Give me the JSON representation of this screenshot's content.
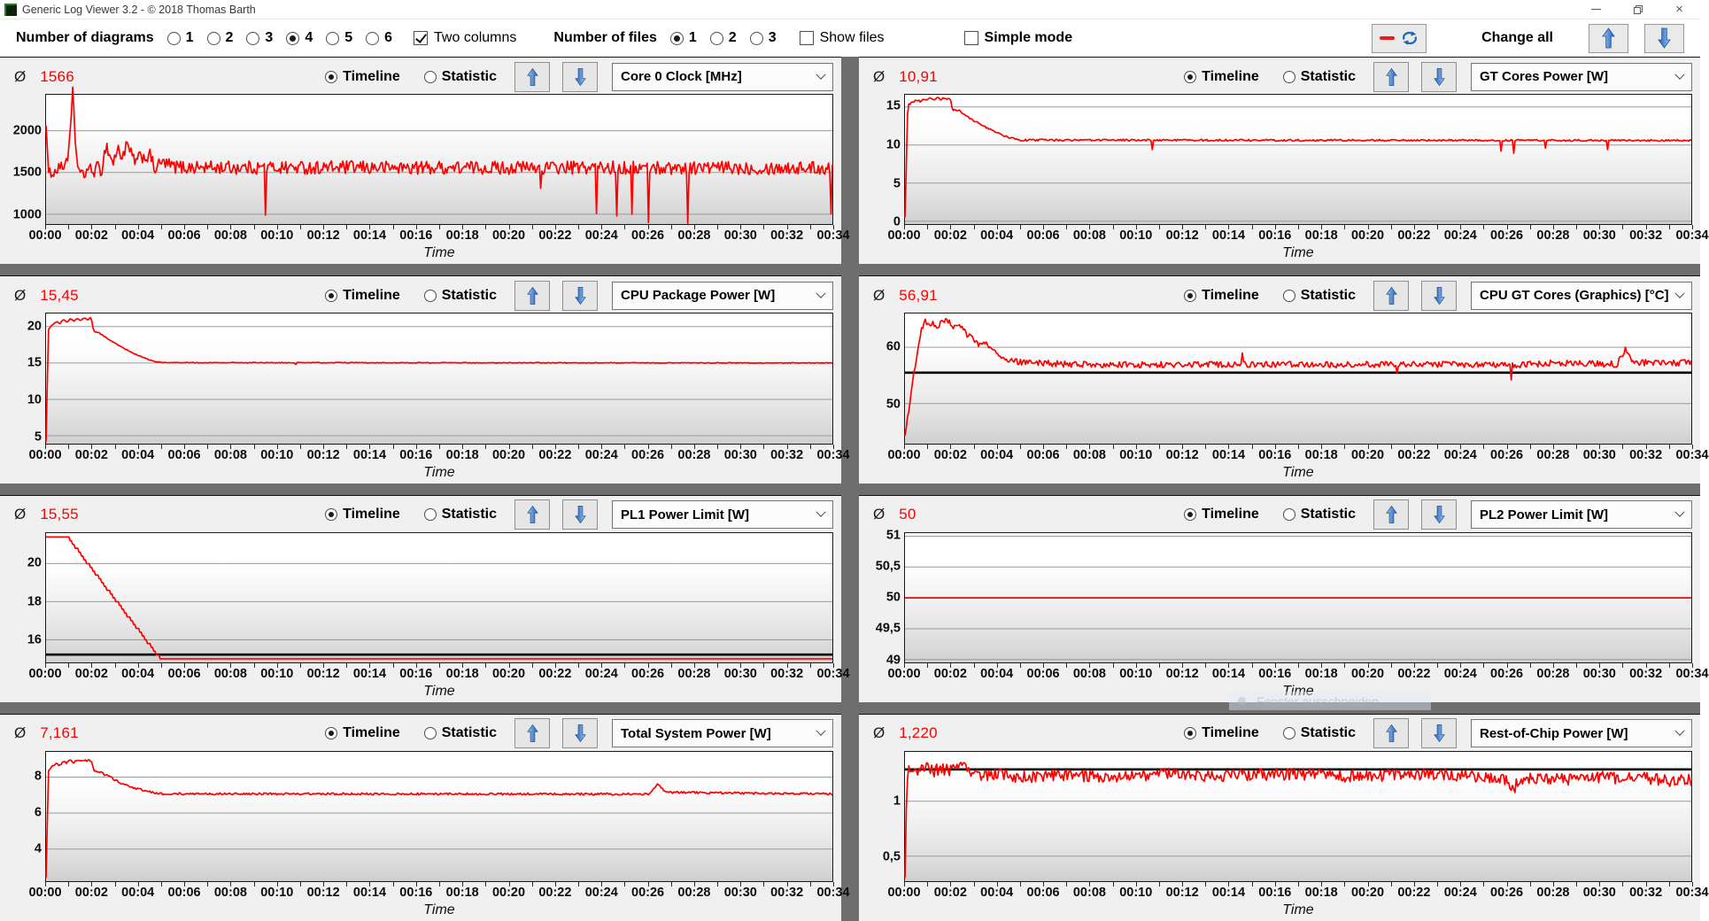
{
  "window": {
    "title": "Generic Log Viewer 3.2 - © 2018 Thomas Barth",
    "close_glyph": "×"
  },
  "toolbar": {
    "diagrams_label": "Number of diagrams",
    "diagram_options": [
      "1",
      "2",
      "3",
      "4",
      "5",
      "6"
    ],
    "diagrams_selected": "4",
    "two_columns_label": "Two columns",
    "two_columns_checked": true,
    "files_label": "Number of files",
    "file_options": [
      "1",
      "2",
      "3"
    ],
    "files_selected": "1",
    "show_files_label": "Show files",
    "show_files_checked": false,
    "simple_mode_label": "Simple mode",
    "simple_mode_checked": false,
    "change_all_label": "Change all"
  },
  "controls": {
    "average_symbol": "Ø",
    "timeline_label": "Timeline",
    "statistic_label": "Statistic"
  },
  "artifact": {
    "text": "Fenster ausschneiden"
  },
  "colors": {
    "series_red": "#fe0000",
    "average_line_black": "#000000",
    "arrow_blue": "#2f6fc0",
    "grid_gray": "#9a9a9a"
  },
  "chart_data": [
    {
      "type": "line",
      "metric": "Core 0 Clock [MHz]",
      "avg_display": "1566",
      "average": 1566,
      "xlabel": "Time",
      "x_ticks": [
        "00:00",
        "00:02",
        "00:04",
        "00:06",
        "00:08",
        "00:10",
        "00:12",
        "00:14",
        "00:16",
        "00:18",
        "00:20",
        "00:22",
        "00:24",
        "00:26",
        "00:28",
        "00:30",
        "00:32",
        "00:34"
      ],
      "x_range_min": [
        0,
        34
      ],
      "ylim": [
        880,
        2430
      ],
      "y_ticks": [
        1000,
        1500,
        2000
      ],
      "y_tick_labels": [
        "1000",
        "1500",
        "2000"
      ],
      "line_color": "#fe0000",
      "noise": 80,
      "avg_line": null,
      "anchors": [
        [
          0,
          2130
        ],
        [
          0.1,
          1430
        ],
        [
          0.25,
          1540
        ],
        [
          0.4,
          1480
        ],
        [
          0.55,
          1600
        ],
        [
          0.7,
          1520
        ],
        [
          0.85,
          1650
        ],
        [
          1.0,
          1750
        ],
        [
          1.15,
          2450
        ],
        [
          1.3,
          1720
        ],
        [
          1.45,
          1500
        ],
        [
          1.6,
          1440
        ],
        [
          1.8,
          1560
        ],
        [
          2.0,
          1500
        ],
        [
          2.2,
          1560
        ],
        [
          2.4,
          1520
        ],
        [
          2.6,
          1840
        ],
        [
          2.75,
          1700
        ],
        [
          2.9,
          1620
        ],
        [
          3.1,
          1780
        ],
        [
          3.3,
          1690
        ],
        [
          3.5,
          1830
        ],
        [
          3.7,
          1700
        ],
        [
          3.9,
          1620
        ],
        [
          4.1,
          1700
        ],
        [
          4.3,
          1680
        ],
        [
          4.5,
          1700
        ],
        [
          4.7,
          1540
        ],
        [
          5.0,
          1620
        ],
        [
          5.5,
          1570
        ],
        [
          6,
          1560
        ],
        [
          34,
          1555
        ]
      ],
      "spikes": [
        [
          9.5,
          990
        ],
        [
          21.4,
          1310
        ],
        [
          23.8,
          1010
        ],
        [
          24.7,
          980
        ],
        [
          25.35,
          1000
        ],
        [
          26.05,
          900
        ],
        [
          27.75,
          890
        ],
        [
          33.95,
          1005
        ]
      ]
    },
    {
      "type": "line",
      "metric": "GT Cores Power [W]",
      "avg_display": "10,91",
      "average": 10.91,
      "xlabel": "Time",
      "x_ticks": [
        "00:00",
        "00:02",
        "00:04",
        "00:06",
        "00:08",
        "00:10",
        "00:12",
        "00:14",
        "00:16",
        "00:18",
        "00:20",
        "00:22",
        "00:24",
        "00:26",
        "00:28",
        "00:30",
        "00:32",
        "00:34"
      ],
      "x_range_min": [
        0,
        34
      ],
      "ylim": [
        -0.4,
        16.6
      ],
      "y_ticks": [
        0,
        5,
        10,
        15
      ],
      "y_tick_labels": [
        "0",
        "5",
        "10",
        "15"
      ],
      "line_color": "#fe0000",
      "noise": 0.12,
      "avg_line": null,
      "anchors": [
        [
          0,
          0.4
        ],
        [
          0.12,
          15.2
        ],
        [
          0.3,
          15.6
        ],
        [
          0.5,
          15.9
        ],
        [
          0.65,
          15.7
        ],
        [
          0.8,
          16.1
        ],
        [
          0.95,
          15.85
        ],
        [
          1.1,
          16.15
        ],
        [
          1.25,
          15.9
        ],
        [
          1.4,
          16.2
        ],
        [
          1.55,
          15.95
        ],
        [
          1.7,
          16.2
        ],
        [
          1.85,
          16.05
        ],
        [
          1.95,
          16.15
        ],
        [
          2.05,
          14.7
        ],
        [
          2.2,
          14.45
        ],
        [
          2.35,
          14.55
        ],
        [
          2.5,
          14.1
        ],
        [
          2.8,
          13.5
        ],
        [
          3.1,
          13.0
        ],
        [
          3.4,
          12.5
        ],
        [
          3.7,
          12.0
        ],
        [
          4.0,
          11.6
        ],
        [
          4.3,
          11.2
        ],
        [
          4.6,
          10.9
        ],
        [
          5.0,
          10.65
        ],
        [
          34,
          10.6
        ]
      ],
      "spikes": [
        [
          10.7,
          9.4
        ],
        [
          25.8,
          9.2
        ],
        [
          26.3,
          8.9
        ],
        [
          27.7,
          9.6
        ],
        [
          30.4,
          9.4
        ]
      ]
    },
    {
      "type": "line",
      "metric": "CPU Package Power [W]",
      "avg_display": "15,45",
      "average": 15.45,
      "xlabel": "Time",
      "x_ticks": [
        "00:00",
        "00:02",
        "00:04",
        "00:06",
        "00:08",
        "00:10",
        "00:12",
        "00:14",
        "00:16",
        "00:18",
        "00:20",
        "00:22",
        "00:24",
        "00:26",
        "00:28",
        "00:30",
        "00:32",
        "00:34"
      ],
      "x_range_min": [
        0,
        34
      ],
      "ylim": [
        4,
        21.8
      ],
      "y_ticks": [
        5,
        10,
        15,
        20
      ],
      "y_tick_labels": [
        "5",
        "10",
        "15",
        "20"
      ],
      "line_color": "#fe0000",
      "noise": 0.05,
      "avg_line": null,
      "anchors": [
        [
          0,
          4.2
        ],
        [
          0.1,
          19.6
        ],
        [
          0.25,
          20.2
        ],
        [
          0.45,
          20.7
        ],
        [
          0.6,
          20.4
        ],
        [
          0.75,
          21.0
        ],
        [
          0.9,
          20.6
        ],
        [
          1.05,
          21.1
        ],
        [
          1.2,
          20.75
        ],
        [
          1.35,
          21.15
        ],
        [
          1.5,
          20.85
        ],
        [
          1.65,
          21.2
        ],
        [
          1.8,
          20.9
        ],
        [
          1.95,
          21.3
        ],
        [
          2.05,
          19.4
        ],
        [
          2.3,
          19.1
        ],
        [
          2.6,
          18.5
        ],
        [
          2.9,
          17.9
        ],
        [
          3.2,
          17.3
        ],
        [
          3.5,
          16.8
        ],
        [
          3.8,
          16.3
        ],
        [
          4.1,
          15.9
        ],
        [
          4.4,
          15.5
        ],
        [
          4.7,
          15.2
        ],
        [
          5.0,
          15.05
        ],
        [
          34,
          15.0
        ]
      ],
      "spikes": [
        [
          10.8,
          14.8
        ]
      ]
    },
    {
      "type": "line",
      "metric": "CPU GT Cores (Graphics) [°C]",
      "avg_display": "56,91",
      "average": 56.91,
      "xlabel": "Time",
      "x_ticks": [
        "00:00",
        "00:02",
        "00:04",
        "00:06",
        "00:08",
        "00:10",
        "00:12",
        "00:14",
        "00:16",
        "00:18",
        "00:20",
        "00:22",
        "00:24",
        "00:26",
        "00:28",
        "00:30",
        "00:32",
        "00:34"
      ],
      "x_range_min": [
        0,
        34
      ],
      "ylim": [
        43,
        66
      ],
      "y_ticks": [
        50,
        60
      ],
      "y_tick_labels": [
        "50",
        "60"
      ],
      "line_color": "#fe0000",
      "noise": 0.55,
      "avg_line": 55.5,
      "anchors": [
        [
          0,
          44
        ],
        [
          0.2,
          50
        ],
        [
          0.45,
          57
        ],
        [
          0.7,
          63
        ],
        [
          0.9,
          64.8
        ],
        [
          1.05,
          63.6
        ],
        [
          1.2,
          64.2
        ],
        [
          1.4,
          63.6
        ],
        [
          1.6,
          64.6
        ],
        [
          1.8,
          64.9
        ],
        [
          2.0,
          64.2
        ],
        [
          2.2,
          63.3
        ],
        [
          2.45,
          63.6
        ],
        [
          2.7,
          62.2
        ],
        [
          2.95,
          61.6
        ],
        [
          3.2,
          60.6
        ],
        [
          3.45,
          61.0
        ],
        [
          3.7,
          60.2
        ],
        [
          3.95,
          59.3
        ],
        [
          4.2,
          58.5
        ],
        [
          4.5,
          57.8
        ],
        [
          5.0,
          57.3
        ],
        [
          7,
          57.0
        ],
        [
          10,
          56.9
        ],
        [
          14,
          57.0
        ],
        [
          18,
          56.9
        ],
        [
          22,
          57.0
        ],
        [
          26,
          56.8
        ],
        [
          28,
          57.2
        ],
        [
          30.8,
          57.0
        ],
        [
          31.15,
          59.6
        ],
        [
          31.5,
          57.3
        ],
        [
          33,
          57.2
        ],
        [
          34,
          57.3
        ]
      ],
      "spikes": [
        [
          14.6,
          59.0
        ],
        [
          21.3,
          55.4
        ],
        [
          26.2,
          54.2
        ]
      ]
    },
    {
      "type": "line",
      "metric": "PL1 Power Limit [W]",
      "avg_display": "15,55",
      "average": 15.55,
      "xlabel": "Time",
      "x_ticks": [
        "00:00",
        "00:02",
        "00:04",
        "00:06",
        "00:08",
        "00:10",
        "00:12",
        "00:14",
        "00:16",
        "00:18",
        "00:20",
        "00:22",
        "00:24",
        "00:26",
        "00:28",
        "00:30",
        "00:32",
        "00:34"
      ],
      "x_range_min": [
        0,
        34
      ],
      "ylim": [
        14.8,
        21.6
      ],
      "y_ticks": [
        16,
        18,
        20
      ],
      "y_tick_labels": [
        "16",
        "18",
        "20"
      ],
      "line_color": "#fe0000",
      "noise": 0,
      "quantize": 0.2,
      "avg_line": 15.22,
      "anchors": [
        [
          0,
          21.3
        ],
        [
          1.0,
          21.3
        ],
        [
          4.95,
          15.0
        ],
        [
          34,
          15.0
        ]
      ],
      "spikes": []
    },
    {
      "type": "line",
      "metric": "PL2 Power Limit [W]",
      "avg_display": "50",
      "average": 50,
      "xlabel": "Time",
      "x_ticks": [
        "00:00",
        "00:02",
        "00:04",
        "00:06",
        "00:08",
        "00:10",
        "00:12",
        "00:14",
        "00:16",
        "00:18",
        "00:20",
        "00:22",
        "00:24",
        "00:26",
        "00:28",
        "00:30",
        "00:32",
        "00:34"
      ],
      "x_range_min": [
        0,
        34
      ],
      "ylim": [
        48.95,
        51.05
      ],
      "y_ticks": [
        49,
        49.5,
        50,
        50.5,
        51
      ],
      "y_tick_labels": [
        "49",
        "49,5",
        "50",
        "50,5",
        "51"
      ],
      "line_color": "#fe0000",
      "noise": 0,
      "avg_line": null,
      "anchors": [
        [
          0,
          50
        ],
        [
          34,
          50
        ]
      ],
      "spikes": []
    },
    {
      "type": "line",
      "metric": "Total System Power [W]",
      "avg_display": "7,161",
      "average": 7.161,
      "xlabel": "Time",
      "x_ticks": [
        "00:00",
        "00:02",
        "00:04",
        "00:06",
        "00:08",
        "00:10",
        "00:12",
        "00:14",
        "00:16",
        "00:18",
        "00:20",
        "00:22",
        "00:24",
        "00:26",
        "00:28",
        "00:30",
        "00:32",
        "00:34"
      ],
      "x_range_min": [
        0,
        34
      ],
      "ylim": [
        2.2,
        9.4
      ],
      "y_ticks": [
        4,
        6,
        8
      ],
      "y_tick_labels": [
        "4",
        "6",
        "8"
      ],
      "line_color": "#fe0000",
      "noise": 0.06,
      "avg_line": null,
      "anchors": [
        [
          0,
          2.4
        ],
        [
          0.1,
          8.3
        ],
        [
          0.25,
          8.55
        ],
        [
          0.45,
          8.75
        ],
        [
          0.6,
          8.65
        ],
        [
          0.75,
          8.9
        ],
        [
          0.9,
          8.75
        ],
        [
          1.05,
          8.95
        ],
        [
          1.2,
          8.8
        ],
        [
          1.35,
          9.0
        ],
        [
          1.5,
          8.85
        ],
        [
          1.65,
          8.95
        ],
        [
          1.8,
          8.9
        ],
        [
          1.95,
          8.95
        ],
        [
          2.05,
          8.4
        ],
        [
          2.3,
          8.3
        ],
        [
          2.6,
          8.1
        ],
        [
          2.9,
          7.9
        ],
        [
          3.2,
          7.7
        ],
        [
          3.5,
          7.55
        ],
        [
          3.8,
          7.4
        ],
        [
          4.1,
          7.3
        ],
        [
          4.4,
          7.2
        ],
        [
          4.7,
          7.12
        ],
        [
          5.0,
          7.07
        ],
        [
          26.1,
          7.05
        ],
        [
          26.45,
          7.65
        ],
        [
          26.8,
          7.15
        ],
        [
          34,
          7.05
        ]
      ],
      "spikes": []
    },
    {
      "type": "line",
      "metric": "Rest-of-Chip Power [W]",
      "avg_display": "1,220",
      "average": 1.22,
      "xlabel": "Time",
      "x_ticks": [
        "00:00",
        "00:02",
        "00:04",
        "00:06",
        "00:08",
        "00:10",
        "00:12",
        "00:14",
        "00:16",
        "00:18",
        "00:20",
        "00:22",
        "00:24",
        "00:26",
        "00:28",
        "00:30",
        "00:32",
        "00:34"
      ],
      "x_range_min": [
        0,
        34
      ],
      "ylim": [
        0.27,
        1.45
      ],
      "y_ticks": [
        0.5,
        1
      ],
      "y_tick_labels": [
        "0,5",
        "1"
      ],
      "line_color": "#fe0000",
      "noise": 0.055,
      "avg_line": 1.29,
      "anchors": [
        [
          0,
          0.3
        ],
        [
          0.08,
          1.25
        ],
        [
          0.3,
          1.3
        ],
        [
          0.6,
          1.28
        ],
        [
          0.9,
          1.33
        ],
        [
          1.2,
          1.27
        ],
        [
          1.5,
          1.3
        ],
        [
          2,
          1.28
        ],
        [
          2.5,
          1.32
        ],
        [
          3,
          1.25
        ],
        [
          3.5,
          1.23
        ],
        [
          4,
          1.25
        ],
        [
          5,
          1.22
        ],
        [
          7,
          1.24
        ],
        [
          9,
          1.22
        ],
        [
          11,
          1.25
        ],
        [
          13,
          1.23
        ],
        [
          15,
          1.24
        ],
        [
          17,
          1.25
        ],
        [
          19,
          1.23
        ],
        [
          21,
          1.24
        ],
        [
          23,
          1.25
        ],
        [
          25,
          1.22
        ],
        [
          26,
          1.2
        ],
        [
          26.3,
          1.1
        ],
        [
          26.6,
          1.21
        ],
        [
          27,
          1.2
        ],
        [
          28,
          1.21
        ],
        [
          29,
          1.19
        ],
        [
          30,
          1.22
        ],
        [
          31,
          1.2
        ],
        [
          32,
          1.21
        ],
        [
          33,
          1.19
        ],
        [
          34,
          1.19
        ]
      ],
      "spikes": []
    }
  ]
}
